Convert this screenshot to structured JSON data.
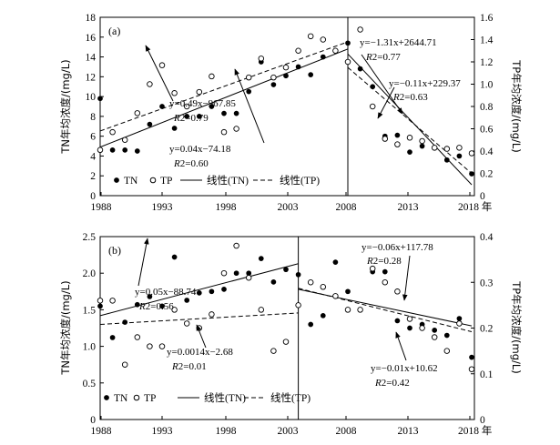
{
  "chart_data": [
    {
      "type": "scatter",
      "panel_label": "(a)",
      "xlabel": "",
      "x_ticks": [
        "1988",
        "1993",
        "1998",
        "2003",
        "2008",
        "2013",
        "2018 年"
      ],
      "xlim": [
        1988,
        2018
      ],
      "ylabel_left": "TN年均浓度/(mg/L)",
      "ylabel_right": "TP年均浓度/(mg/L)",
      "ylim_left": [
        0,
        18
      ],
      "yticks_left": [
        "0",
        "2",
        "4",
        "6",
        "8",
        "10",
        "12",
        "14",
        "16",
        "18"
      ],
      "ylim_right": [
        0,
        1.6
      ],
      "yticks_right": [
        "0",
        "0.2",
        "0.4",
        "0.6",
        "0.8",
        "1.0",
        "1.2",
        "1.4",
        "1.6"
      ],
      "breakpoint_year": 2008,
      "series": [
        {
          "name": "TN",
          "axis": "left",
          "marker": "filled-circle",
          "points": [
            [
              1988,
              9.8
            ],
            [
              1989,
              4.6
            ],
            [
              1990,
              4.6
            ],
            [
              1991,
              4.5
            ],
            [
              1992,
              7.2
            ],
            [
              1993,
              9.0
            ],
            [
              1994,
              6.8
            ],
            [
              1995,
              8.0
            ],
            [
              1996,
              8.0
            ],
            [
              1997,
              9.0
            ],
            [
              1998,
              8.3
            ],
            [
              1999,
              8.3
            ],
            [
              2000,
              10.5
            ],
            [
              2001,
              13.5
            ],
            [
              2002,
              11.2
            ],
            [
              2003,
              12.1
            ],
            [
              2004,
              13.0
            ],
            [
              2005,
              12.2
            ],
            [
              2006,
              14.0
            ],
            [
              2007,
              14.6
            ],
            [
              2008,
              15.4
            ],
            [
              2009,
              12.8
            ],
            [
              2010,
              11.0
            ],
            [
              2011,
              6.0
            ],
            [
              2012,
              6.1
            ],
            [
              2013,
              4.4
            ],
            [
              2014,
              5.0
            ],
            [
              2015,
              4.8
            ],
            [
              2016,
              3.6
            ],
            [
              2017,
              4.0
            ],
            [
              2018,
              2.2
            ]
          ]
        },
        {
          "name": "TP",
          "axis": "right",
          "marker": "open-circle",
          "points": [
            [
              1988,
              0.41
            ],
            [
              1989,
              0.57
            ],
            [
              1990,
              0.5
            ],
            [
              1991,
              0.74
            ],
            [
              1992,
              1.0
            ],
            [
              1993,
              1.17
            ],
            [
              1994,
              0.92
            ],
            [
              1995,
              0.8
            ],
            [
              1996,
              0.93
            ],
            [
              1997,
              1.07
            ],
            [
              1998,
              0.57
            ],
            [
              1999,
              0.6
            ],
            [
              2000,
              1.06
            ],
            [
              2001,
              1.23
            ],
            [
              2002,
              1.06
            ],
            [
              2003,
              1.15
            ],
            [
              2004,
              1.3
            ],
            [
              2005,
              1.43
            ],
            [
              2006,
              1.4
            ],
            [
              2007,
              1.3
            ],
            [
              2008,
              1.2
            ],
            [
              2009,
              1.49
            ],
            [
              2010,
              0.8
            ],
            [
              2011,
              0.51
            ],
            [
              2012,
              0.46
            ],
            [
              2013,
              0.52
            ],
            [
              2014,
              0.49
            ],
            [
              2015,
              0.43
            ],
            [
              2016,
              0.42
            ],
            [
              2017,
              0.43
            ],
            [
              2018,
              0.38
            ]
          ]
        }
      ],
      "fits": [
        {
          "series": "TN",
          "style": "solid",
          "x": [
            1988,
            2008
          ],
          "y": [
            4.9,
            14.8
          ],
          "equation": "y=0.49x−967.85",
          "r2_label": "R",
          "r2_value": "2=0.79"
        },
        {
          "series": "TP",
          "style": "dashed",
          "x": [
            1988,
            2008
          ],
          "y": [
            0.58,
            1.38
          ],
          "equation": "y=0.04x−74.18",
          "r2_label": "R",
          "r2_value": "2=0.60"
        },
        {
          "series": "TN",
          "style": "solid",
          "x": [
            2008,
            2018
          ],
          "y": [
            14.3,
            1.1
          ],
          "equation": "y=−1.31x+2644.71",
          "r2_label": "R",
          "r2_value": "2=0.77"
        },
        {
          "series": "TP",
          "style": "dashed",
          "x": [
            2008,
            2018
          ],
          "y": [
            1.15,
            0.2
          ],
          "equation": "y=−0.11x+229.37",
          "r2_label": "R",
          "r2_value": "2=0.63"
        }
      ],
      "legend": [
        "TN",
        "TP",
        "线性(TN)",
        "线性(TP)"
      ],
      "legend_position": "bottom-left"
    },
    {
      "type": "scatter",
      "panel_label": "(b)",
      "xlabel": "",
      "x_ticks": [
        "1988",
        "1993",
        "1998",
        "2003",
        "2008",
        "2013",
        "2018 年"
      ],
      "xlim": [
        1988,
        2018
      ],
      "ylabel_left": "TN年均浓度/(mg/L)",
      "ylabel_right": "TP年均浓度/(mg/L)",
      "ylim_left": [
        0,
        2.5
      ],
      "yticks_left": [
        "0",
        "0.5",
        "1.0",
        "1.5",
        "2.0",
        "2.5"
      ],
      "ylim_right": [
        0,
        0.4
      ],
      "yticks_right": [
        "0",
        "0.1",
        "0.2",
        "0.3",
        "0.4"
      ],
      "breakpoint_year": 2004,
      "series": [
        {
          "name": "TN",
          "axis": "left",
          "marker": "filled-circle",
          "points": [
            [
              1988,
              1.55
            ],
            [
              1989,
              1.12
            ],
            [
              1990,
              1.33
            ],
            [
              1991,
              1.57
            ],
            [
              1992,
              1.68
            ],
            [
              1993,
              1.55
            ],
            [
              1994,
              2.22
            ],
            [
              1995,
              1.63
            ],
            [
              1996,
              1.73
            ],
            [
              1997,
              1.75
            ],
            [
              1998,
              1.78
            ],
            [
              1999,
              2.0
            ],
            [
              2000,
              2.0
            ],
            [
              2001,
              2.2
            ],
            [
              2002,
              1.88
            ],
            [
              2003,
              2.05
            ],
            [
              2004,
              1.98
            ],
            [
              2005,
              1.3
            ],
            [
              2006,
              1.42
            ],
            [
              2007,
              2.15
            ],
            [
              2008,
              1.75
            ],
            [
              2009,
              1.5
            ],
            [
              2010,
              2.02
            ],
            [
              2011,
              2.02
            ],
            [
              2012,
              1.35
            ],
            [
              2013,
              1.25
            ],
            [
              2014,
              1.3
            ],
            [
              2015,
              1.22
            ],
            [
              2016,
              1.15
            ],
            [
              2017,
              1.38
            ],
            [
              2018,
              0.85
            ]
          ]
        },
        {
          "name": "TP",
          "axis": "right",
          "marker": "open-circle",
          "points": [
            [
              1988,
              0.26
            ],
            [
              1989,
              0.26
            ],
            [
              1990,
              0.12
            ],
            [
              1991,
              0.18
            ],
            [
              1992,
              0.16
            ],
            [
              1993,
              0.16
            ],
            [
              1994,
              0.24
            ],
            [
              1995,
              0.21
            ],
            [
              1996,
              0.2
            ],
            [
              1997,
              0.23
            ],
            [
              1998,
              0.32
            ],
            [
              1999,
              0.38
            ],
            [
              2000,
              0.31
            ],
            [
              2001,
              0.24
            ],
            [
              2002,
              0.15
            ],
            [
              2003,
              0.17
            ],
            [
              2004,
              0.25
            ],
            [
              2005,
              0.3
            ],
            [
              2006,
              0.29
            ],
            [
              2007,
              0.27
            ],
            [
              2008,
              0.24
            ],
            [
              2009,
              0.24
            ],
            [
              2010,
              0.33
            ],
            [
              2011,
              0.3
            ],
            [
              2012,
              0.28
            ],
            [
              2013,
              0.22
            ],
            [
              2014,
              0.2
            ],
            [
              2015,
              0.18
            ],
            [
              2016,
              0.15
            ],
            [
              2017,
              0.21
            ],
            [
              2018,
              0.11
            ]
          ]
        }
      ],
      "fits": [
        {
          "series": "TN",
          "style": "solid",
          "x": [
            1988,
            2004
          ],
          "y": [
            1.42,
            2.13
          ],
          "equation": "y=0.05x−88.74",
          "r2_label": "R",
          "r2_value": "2=0.56"
        },
        {
          "series": "TP",
          "style": "dashed",
          "x": [
            1988,
            2004
          ],
          "y": [
            0.208,
            0.233
          ],
          "equation": "y=0.0014x−2.68",
          "r2_label": "R",
          "r2_value": "2=0.01"
        },
        {
          "series": "TN",
          "style": "solid",
          "x": [
            2004,
            2018
          ],
          "y": [
            1.78,
            1.28
          ],
          "equation": "y=−0.06x+117.78",
          "r2_label": "R",
          "r2_value": "2=0.28"
        },
        {
          "series": "TP",
          "style": "dashed",
          "x": [
            2004,
            2018
          ],
          "y": [
            0.287,
            0.192
          ],
          "equation": "y=−0.01x+10.62",
          "r2_label": "R",
          "r2_value": "2=0.42"
        }
      ],
      "legend": [
        "TN",
        "TP",
        "线性(TN)",
        "线性(TP)"
      ],
      "legend_position": "bottom-left"
    }
  ]
}
